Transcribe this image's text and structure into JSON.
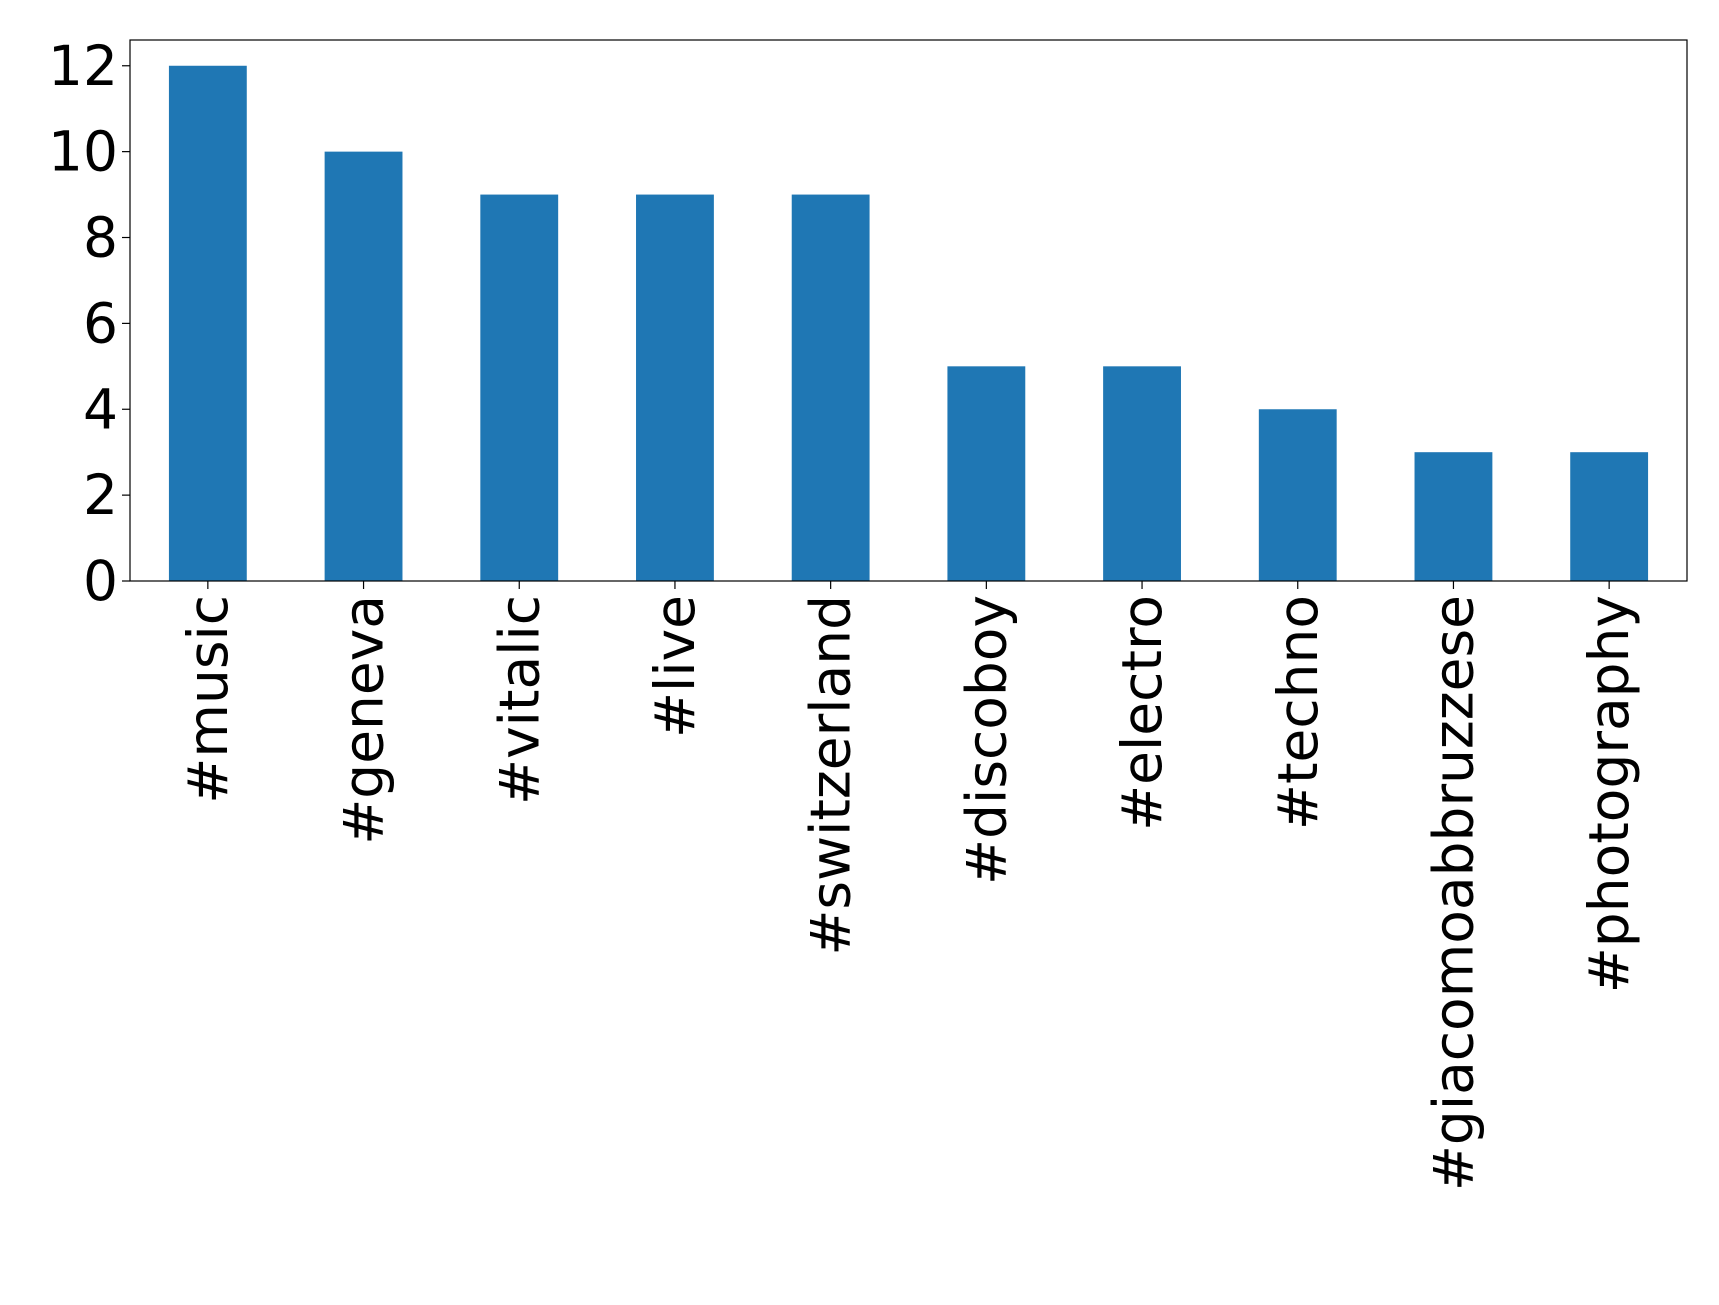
{
  "chart_data": {
    "type": "bar",
    "categories": [
      "#music",
      "#geneva",
      "#vitalic",
      "#live",
      "#switzerland",
      "#discoboy",
      "#electro",
      "#techno",
      "#giacomoabbruzzese",
      "#photography"
    ],
    "values": [
      12,
      10,
      9,
      9,
      9,
      5,
      5,
      4,
      3,
      3
    ],
    "color": "#1f77b4",
    "ylim": [
      0,
      12.6
    ],
    "yticks": [
      0,
      2,
      4,
      6,
      8,
      10,
      12
    ],
    "grid": false
  }
}
